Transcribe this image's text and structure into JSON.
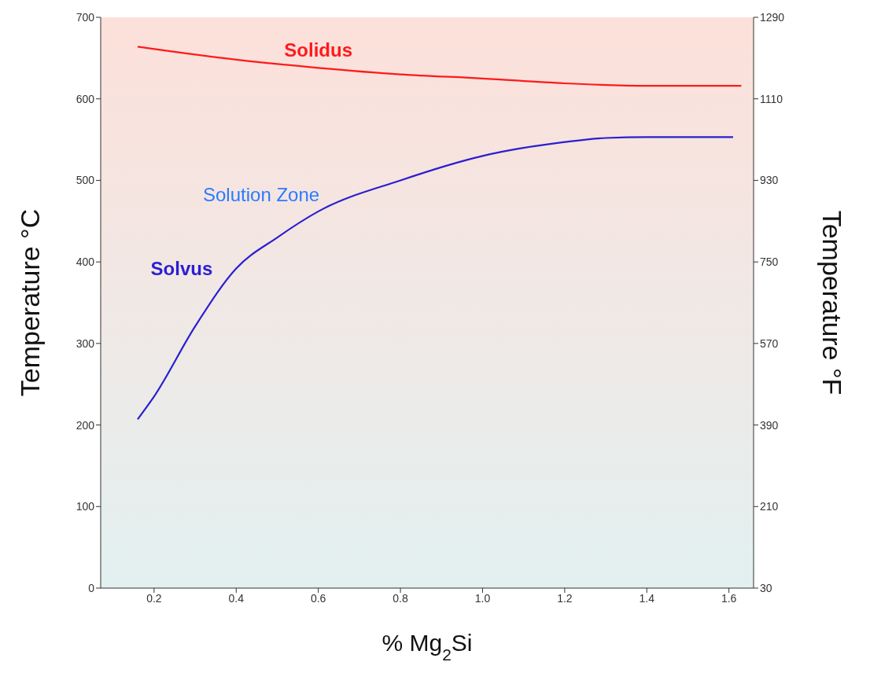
{
  "chart_data": {
    "type": "line",
    "xlabel": "% Mg$_{2}$Si",
    "ylabel": "Temperature °C",
    "y2label": "Temperature °F",
    "xlim": [
      0.07,
      1.66
    ],
    "xticks": [
      0.2,
      0.4,
      0.6,
      0.8,
      {
        "value": 1,
        "label": "1.0"
      },
      1.2,
      1.4,
      1.6
    ],
    "ylim": [
      0,
      700
    ],
    "yticks": [
      0,
      100,
      200,
      300,
      400,
      500,
      600,
      700
    ],
    "y2lim": [
      30,
      1290
    ],
    "y2ticks": [
      30,
      210,
      390,
      570,
      750,
      930,
      1110,
      1290
    ],
    "grid": false,
    "marker": "none",
    "line_style": "solid",
    "series": [
      {
        "name": "Solidus",
        "color": "#ff1a1a",
        "x": [
          0.16,
          0.4,
          0.6,
          0.8,
          1.0,
          1.2,
          1.4,
          1.63
        ],
        "values": [
          664,
          648,
          638,
          630,
          625,
          619,
          616,
          616
        ]
      },
      {
        "name": "Solvus",
        "color": "#2a1fd0",
        "x": [
          0.16,
          0.2,
          0.3,
          0.4,
          0.5,
          0.6,
          0.8,
          1.0,
          1.2,
          1.3,
          1.4,
          1.61
        ],
        "values": [
          207,
          235,
          321,
          392,
          430,
          462,
          500,
          530,
          547,
          552,
          553,
          553
        ]
      }
    ],
    "annotations": [
      "Solution Zone"
    ]
  }
}
